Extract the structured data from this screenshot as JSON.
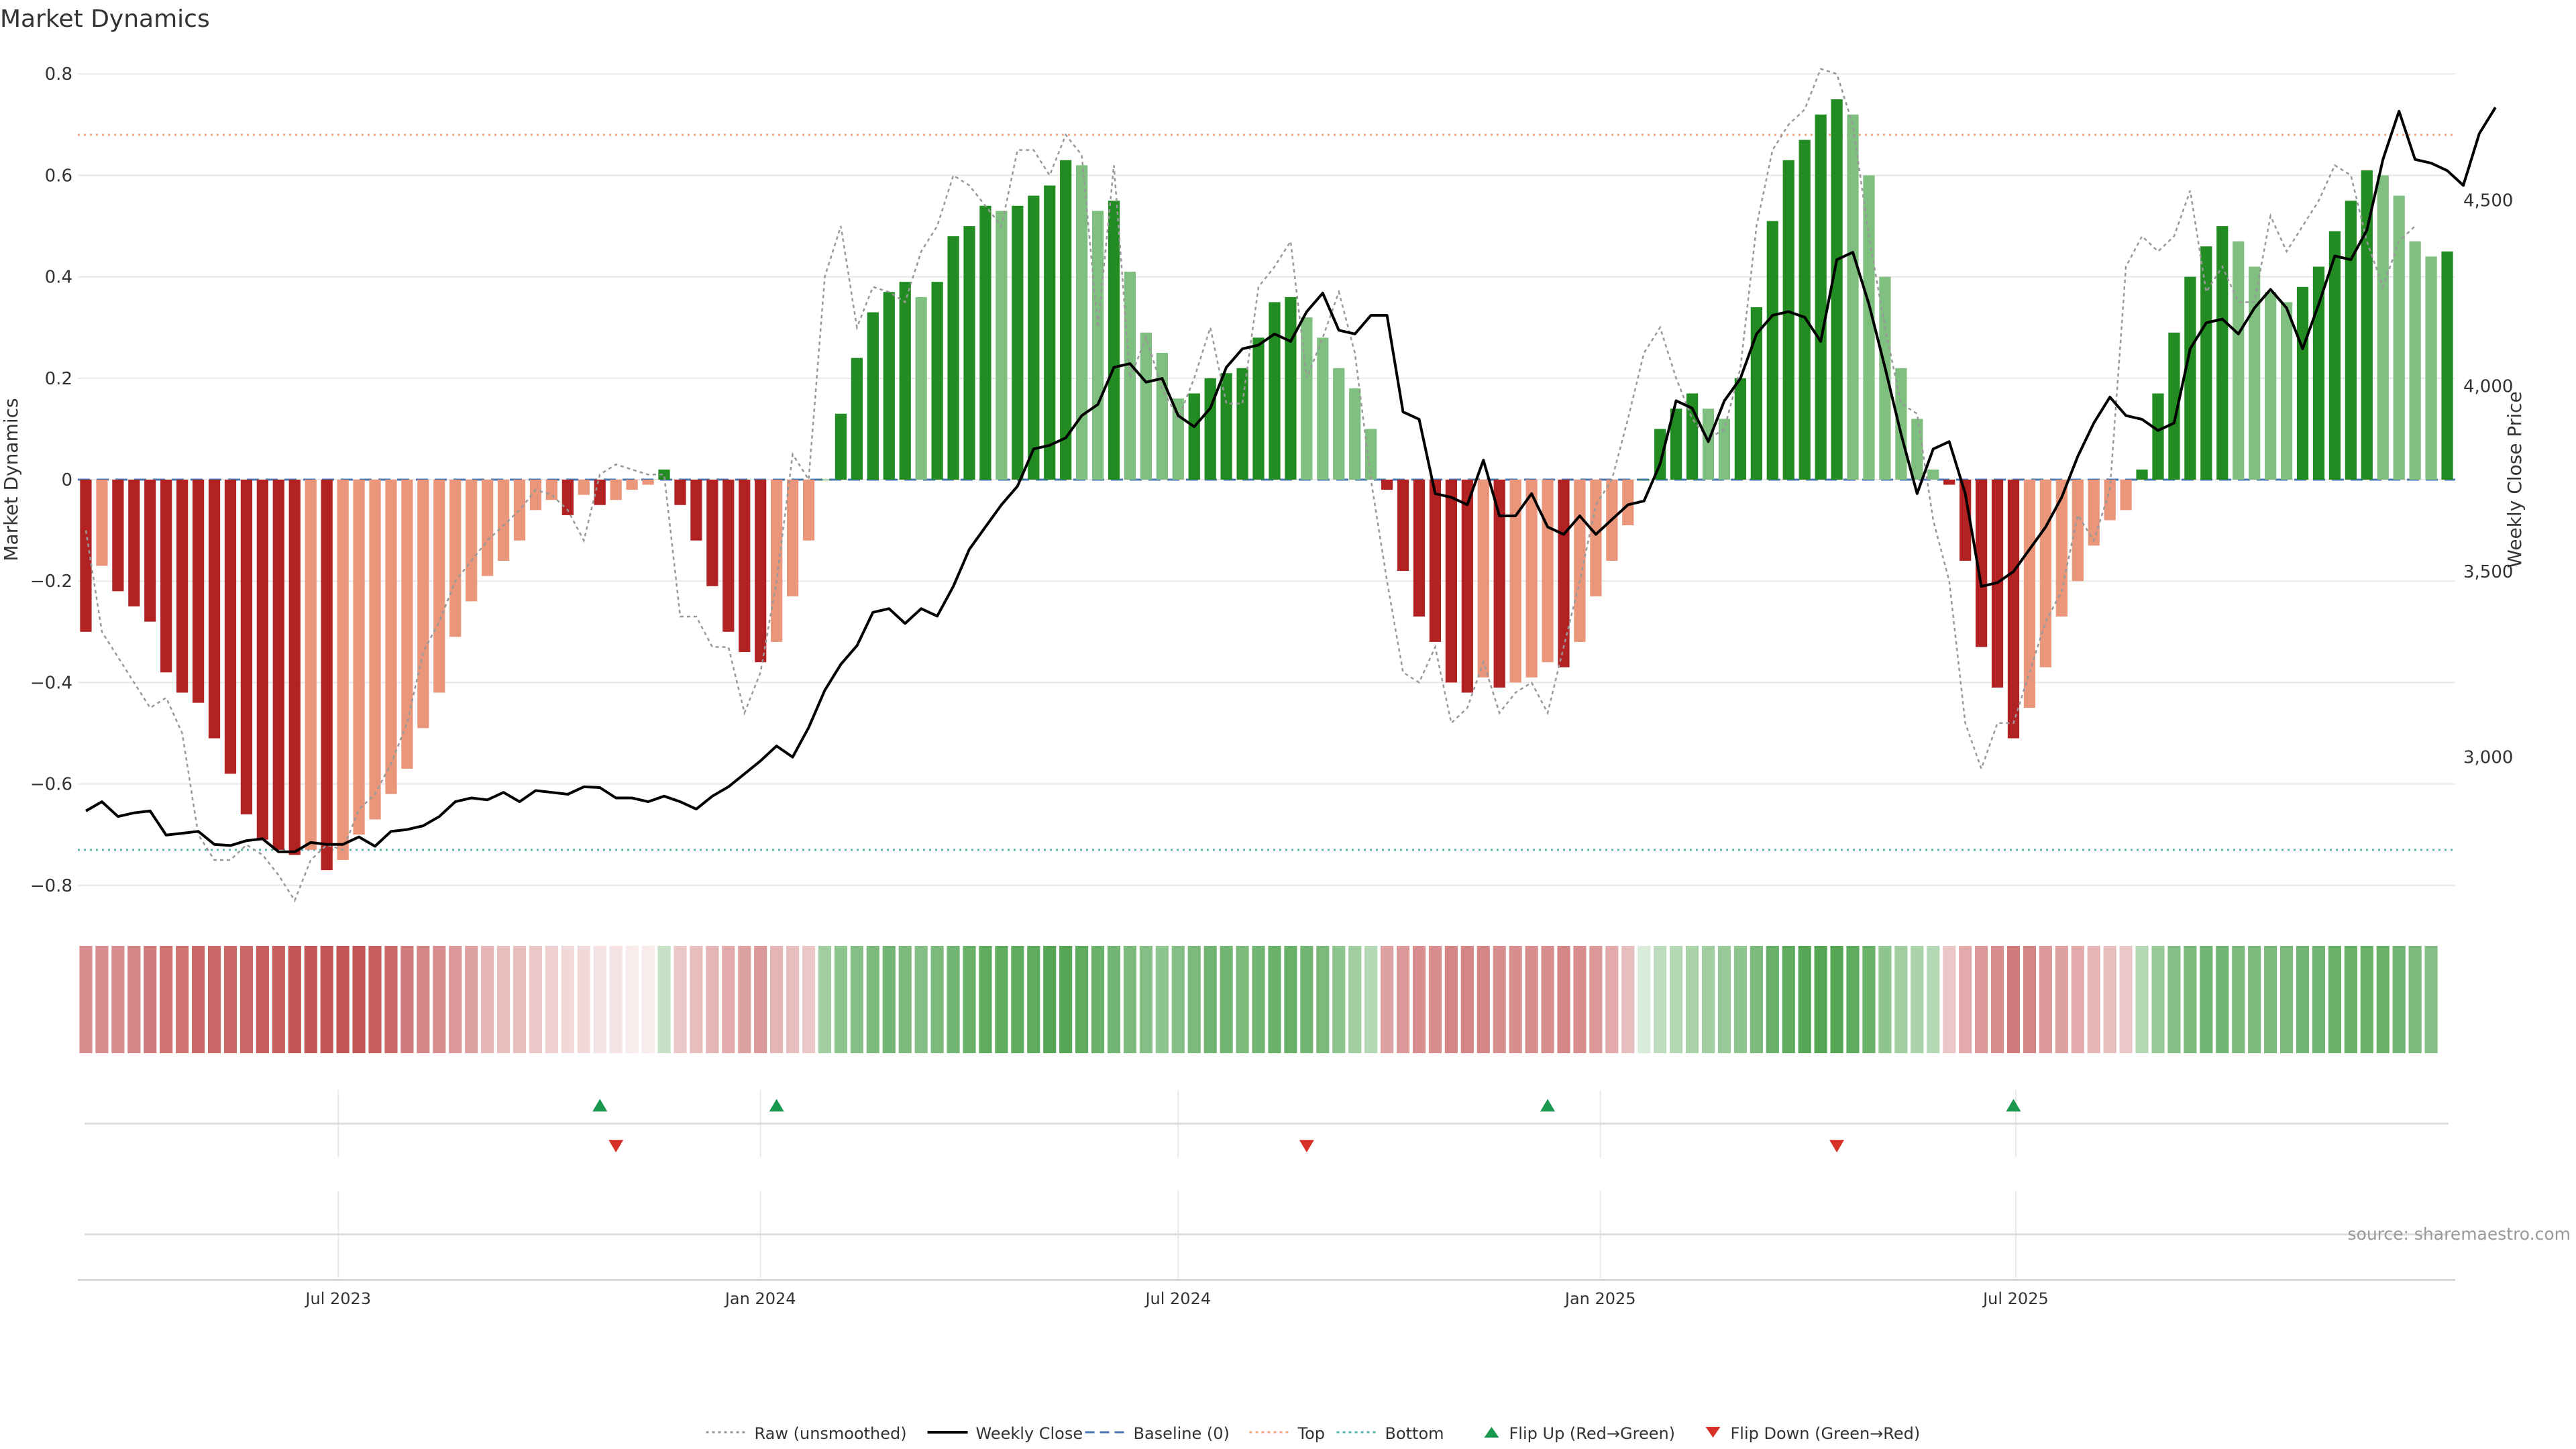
{
  "chart_data": {
    "type": "bar",
    "title": "Market Dynamics",
    "ylabel": "Market Dynamics",
    "y2label": "Weekly Close Price",
    "ylim": [
      -0.84,
      0.84
    ],
    "y2lim": [
      2600,
      4895
    ],
    "yticks": [
      -0.8,
      -0.6,
      -0.4,
      -0.2,
      0,
      0.2,
      0.4,
      0.6,
      0.8
    ],
    "yticklabels": [
      "−0.8",
      "−0.6",
      "−0.4",
      "−0.2",
      "0",
      "0.2",
      "0.4",
      "0.6",
      "0.8"
    ],
    "y2ticks": [
      3000,
      3500,
      4000,
      4500
    ],
    "y2ticklabels": [
      "3,000",
      "3,500",
      "4,000",
      "4,500"
    ],
    "start_date": "2023-03-13",
    "xticks": [
      "2023-07-01",
      "2024-01-01",
      "2024-07-01",
      "2025-01-01",
      "2025-07-01"
    ],
    "xticklabels": [
      "Jul 2023",
      "Jan 2024",
      "Jul 2024",
      "Jan 2025",
      "Jul 2025"
    ],
    "top": 0.68,
    "bottom": -0.73,
    "baseline": 0,
    "grid": true,
    "legend_position": "bottom-center",
    "colors": {
      "strong_green": "#228b22",
      "light_green": "#7fbf7f",
      "strong_red": "#b22222",
      "light_red": "#e9967a",
      "raw_line": "#999999",
      "close_line": "#000000",
      "baseline_line": "#4a76b0",
      "top_line": "#f4a582",
      "bottom_line": "#5ab4ac",
      "flip_up": "#1a9850",
      "flip_down": "#d73027",
      "grid": "#e8e8e8"
    },
    "series": [
      {
        "name": "Market Dynamics",
        "kind": "histogram",
        "values": [
          -0.3,
          -0.17,
          -0.22,
          -0.25,
          -0.28,
          -0.38,
          -0.42,
          -0.44,
          -0.51,
          -0.58,
          -0.66,
          -0.71,
          -0.73,
          -0.74,
          -0.73,
          -0.77,
          -0.75,
          -0.7,
          -0.67,
          -0.62,
          -0.57,
          -0.49,
          -0.42,
          -0.31,
          -0.24,
          -0.19,
          -0.16,
          -0.12,
          -0.06,
          -0.04,
          -0.07,
          -0.03,
          -0.05,
          -0.04,
          -0.02,
          -0.01,
          0.02,
          -0.05,
          -0.12,
          -0.21,
          -0.3,
          -0.34,
          -0.36,
          -0.32,
          -0.23,
          -0.12,
          0,
          0.13,
          0.24,
          0.33,
          0.37,
          0.39,
          0.36,
          0.39,
          0.48,
          0.5,
          0.54,
          0.53,
          0.54,
          0.56,
          0.58,
          0.63,
          0.62,
          0.53,
          0.55,
          0.41,
          0.29,
          0.25,
          0.16,
          0.17,
          0.2,
          0.21,
          0.22,
          0.28,
          0.35,
          0.36,
          0.32,
          0.28,
          0.22,
          0.18,
          0.1,
          -0.02,
          -0.18,
          -0.27,
          -0.32,
          -0.4,
          -0.42,
          -0.39,
          -0.41,
          -0.4,
          -0.39,
          -0.36,
          -0.37,
          -0.32,
          -0.23,
          -0.16,
          -0.09,
          0,
          0.1,
          0.14,
          0.17,
          0.14,
          0.12,
          0.2,
          0.34,
          0.51,
          0.63,
          0.67,
          0.72,
          0.75,
          0.72,
          0.6,
          0.4,
          0.22,
          0.12,
          0.02,
          -0.01,
          -0.16,
          -0.33,
          -0.41,
          -0.51,
          -0.45,
          -0.37,
          -0.27,
          -0.2,
          -0.13,
          -0.08,
          -0.06,
          0.02,
          0.17,
          0.29,
          0.4,
          0.46,
          0.5,
          0.47,
          0.42,
          0.37,
          0.35,
          0.38,
          0.42,
          0.49,
          0.55,
          0.61,
          0.6,
          0.56,
          0.47,
          0.44,
          0.45
        ],
        "colors_legend": [
          "strong_green",
          "light_green",
          "strong_red",
          "light_red"
        ]
      },
      {
        "name": "Raw (unsmoothed)",
        "kind": "line",
        "values": [
          -0.1,
          -0.3,
          -0.35,
          -0.4,
          -0.45,
          -0.43,
          -0.5,
          -0.7,
          -0.75,
          -0.75,
          -0.72,
          -0.74,
          -0.78,
          -0.83,
          -0.75,
          -0.72,
          -0.73,
          -0.65,
          -0.62,
          -0.56,
          -0.48,
          -0.34,
          -0.28,
          -0.2,
          -0.16,
          -0.12,
          -0.09,
          -0.06,
          -0.02,
          -0.03,
          -0.06,
          -0.12,
          0.01,
          0.03,
          0.02,
          0.01,
          0.01,
          -0.27,
          -0.27,
          -0.33,
          -0.33,
          -0.46,
          -0.38,
          -0.2,
          0.05,
          0.0,
          0.4,
          0.5,
          0.3,
          0.38,
          0.37,
          0.35,
          0.45,
          0.5,
          0.6,
          0.58,
          0.54,
          0.5,
          0.65,
          0.65,
          0.6,
          0.68,
          0.64,
          0.3,
          0.62,
          0.2,
          0.28,
          0.18,
          0.12,
          0.2,
          0.3,
          0.15,
          0.15,
          0.38,
          0.42,
          0.47,
          0.2,
          0.28,
          0.37,
          0.25,
          0.0,
          -0.2,
          -0.38,
          -0.4,
          -0.33,
          -0.48,
          -0.45,
          -0.36,
          -0.46,
          -0.42,
          -0.4,
          -0.46,
          -0.33,
          -0.2,
          -0.05,
          0.0,
          0.12,
          0.25,
          0.3,
          0.2,
          0.12,
          0.08,
          0.1,
          0.22,
          0.5,
          0.65,
          0.7,
          0.73,
          0.81,
          0.8,
          0.7,
          0.48,
          0.3,
          0.15,
          0.13,
          -0.08,
          -0.2,
          -0.48,
          -0.57,
          -0.48,
          -0.48,
          -0.38,
          -0.28,
          -0.22,
          -0.07,
          -0.12,
          -0.02,
          0.42,
          0.48,
          0.45,
          0.48,
          0.57,
          0.37,
          0.42,
          0.35,
          0.35,
          0.52,
          0.45,
          0.5,
          0.55,
          0.62,
          0.6,
          0.47,
          0.38,
          0.47,
          0.5
        ]
      },
      {
        "name": "Weekly Close",
        "kind": "line",
        "axis": "right",
        "values": [
          2855,
          2880,
          2840,
          2850,
          2855,
          2790,
          2795,
          2800,
          2765,
          2762,
          2775,
          2780,
          2745,
          2745,
          2770,
          2765,
          2765,
          2785,
          2760,
          2800,
          2805,
          2815,
          2840,
          2880,
          2890,
          2885,
          2905,
          2880,
          2910,
          2905,
          2900,
          2920,
          2918,
          2890,
          2890,
          2880,
          2895,
          2880,
          2860,
          2895,
          2920,
          2955,
          2990,
          3030,
          3000,
          3080,
          3180,
          3250,
          3300,
          3390,
          3400,
          3360,
          3400,
          3380,
          3460,
          3560,
          3620,
          3680,
          3730,
          3830,
          3840,
          3860,
          3920,
          3950,
          4050,
          4060,
          4010,
          4020,
          3920,
          3890,
          3940,
          4050,
          4100,
          4110,
          4140,
          4120,
          4200,
          4250,
          4150,
          4140,
          4190,
          4190,
          3930,
          3910,
          3710,
          3700,
          3680,
          3800,
          3650,
          3650,
          3710,
          3620,
          3600,
          3650,
          3600,
          3640,
          3680,
          3690,
          3790,
          3960,
          3940,
          3850,
          3960,
          4020,
          4140,
          4190,
          4200,
          4185,
          4120,
          4340,
          4360,
          4220,
          4050,
          3870,
          3710,
          3830,
          3850,
          3710,
          3460,
          3470,
          3500,
          3560,
          3620,
          3700,
          3810,
          3900,
          3970,
          3920,
          3910,
          3880,
          3900,
          4100,
          4170,
          4180,
          4140,
          4210,
          4260,
          4210,
          4100,
          4220,
          4350,
          4340,
          4420,
          4610,
          4740,
          4610,
          4600,
          4580,
          4540,
          4680,
          4750
        ]
      }
    ],
    "state_strip": [
      -0.6,
      -0.6,
      -0.6,
      -0.65,
      -0.7,
      -0.75,
      -0.75,
      -0.8,
      -0.8,
      -0.8,
      -0.8,
      -0.85,
      -0.85,
      -0.9,
      -0.9,
      -0.9,
      -0.9,
      -0.9,
      -0.85,
      -0.8,
      -0.7,
      -0.65,
      -0.6,
      -0.55,
      -0.5,
      -0.4,
      -0.35,
      -0.35,
      -0.3,
      -0.25,
      -0.2,
      -0.2,
      -0.15,
      -0.15,
      -0.1,
      -0.1,
      0.3,
      -0.3,
      -0.35,
      -0.4,
      -0.45,
      -0.5,
      -0.55,
      -0.4,
      -0.35,
      -0.3,
      0.5,
      0.6,
      0.65,
      0.7,
      0.75,
      0.7,
      0.65,
      0.7,
      0.75,
      0.8,
      0.85,
      0.85,
      0.85,
      0.85,
      0.9,
      0.9,
      0.85,
      0.8,
      0.75,
      0.7,
      0.65,
      0.6,
      0.65,
      0.7,
      0.75,
      0.75,
      0.7,
      0.75,
      0.8,
      0.8,
      0.75,
      0.7,
      0.6,
      0.5,
      0.4,
      -0.5,
      -0.55,
      -0.6,
      -0.6,
      -0.65,
      -0.65,
      -0.65,
      -0.6,
      -0.6,
      -0.6,
      -0.6,
      -0.65,
      -0.6,
      -0.55,
      -0.45,
      -0.35,
      0.2,
      0.35,
      0.4,
      0.45,
      0.5,
      0.55,
      0.6,
      0.7,
      0.8,
      0.85,
      0.9,
      0.9,
      0.9,
      0.85,
      0.8,
      0.6,
      0.5,
      0.45,
      0.4,
      -0.3,
      -0.45,
      -0.55,
      -0.6,
      -0.7,
      -0.65,
      -0.55,
      -0.5,
      -0.45,
      -0.4,
      -0.35,
      -0.3,
      0.4,
      0.55,
      0.65,
      0.7,
      0.75,
      0.75,
      0.7,
      0.7,
      0.7,
      0.7,
      0.75,
      0.75,
      0.8,
      0.8,
      0.8,
      0.8,
      0.75,
      0.7,
      0.65
    ],
    "flips": {
      "up": [
        32,
        43,
        91,
        120
      ],
      "down": [
        33,
        76,
        109
      ]
    },
    "legend": [
      {
        "label": "Raw (unsmoothed)",
        "kind": "dotted",
        "color": "#999999"
      },
      {
        "label": "Weekly Close",
        "kind": "solid",
        "color": "#000000"
      },
      {
        "label": "Baseline (0)",
        "kind": "dashed",
        "color": "#4a76b0"
      },
      {
        "label": "Top",
        "kind": "dotted",
        "color": "#f4a582"
      },
      {
        "label": "Bottom",
        "kind": "dotted",
        "color": "#5ab4ac"
      },
      {
        "label": "Flip Up (Red→Green)",
        "kind": "tri-up",
        "color": "#1a9850"
      },
      {
        "label": "Flip Down (Green→Red)",
        "kind": "tri-down",
        "color": "#d73027"
      }
    ],
    "annotation": "source: sharemaestro.com"
  }
}
